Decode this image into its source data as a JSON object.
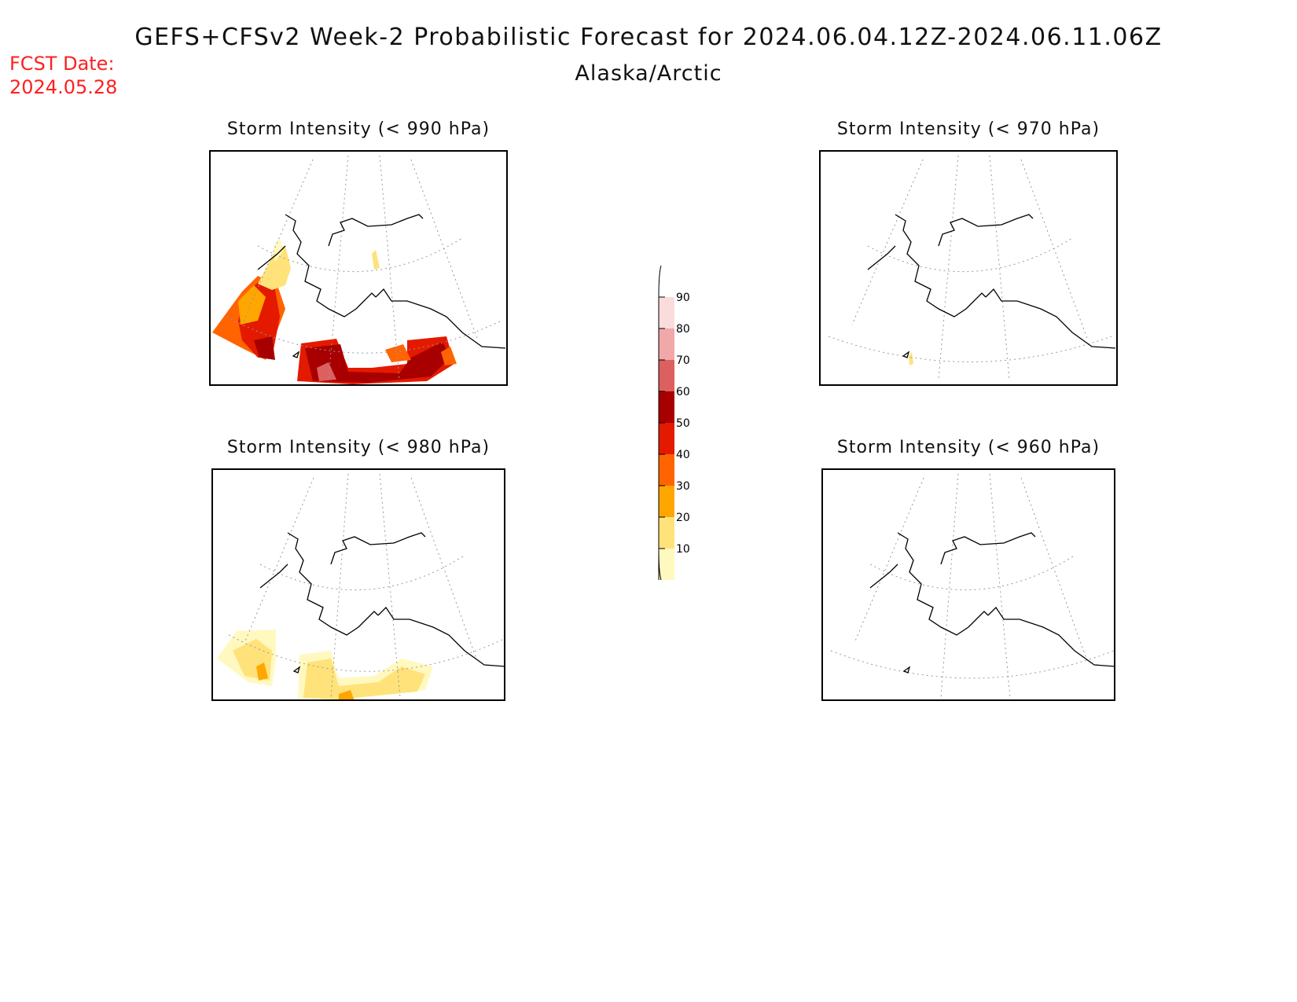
{
  "header": {
    "title": "GEFS+CFSv2 Week-2 Probabilistic Forecast for 2024.06.04.12Z-2024.06.11.06Z",
    "subtitle": "Alaska/Arctic",
    "fcst_date_label": "FCST Date:",
    "fcst_date_value": "2024.05.28"
  },
  "panels": [
    {
      "id": "p990",
      "title": "Storm Intensity (< 990 hPa)"
    },
    {
      "id": "p970",
      "title": "Storm Intensity (< 970 hPa)"
    },
    {
      "id": "p980",
      "title": "Storm Intensity (< 980 hPa)"
    },
    {
      "id": "p960",
      "title": "Storm Intensity (< 960 hPa)"
    }
  ],
  "legend": {
    "levels": [
      "10",
      "20",
      "30",
      "40",
      "50",
      "60",
      "70",
      "80",
      "90"
    ],
    "colors": [
      "#fff9c0",
      "#ffe27a",
      "#ffa600",
      "#ff6400",
      "#e31a00",
      "#a80000",
      "#dd6060",
      "#f0a8a8",
      "#fbdcdc"
    ]
  }
}
